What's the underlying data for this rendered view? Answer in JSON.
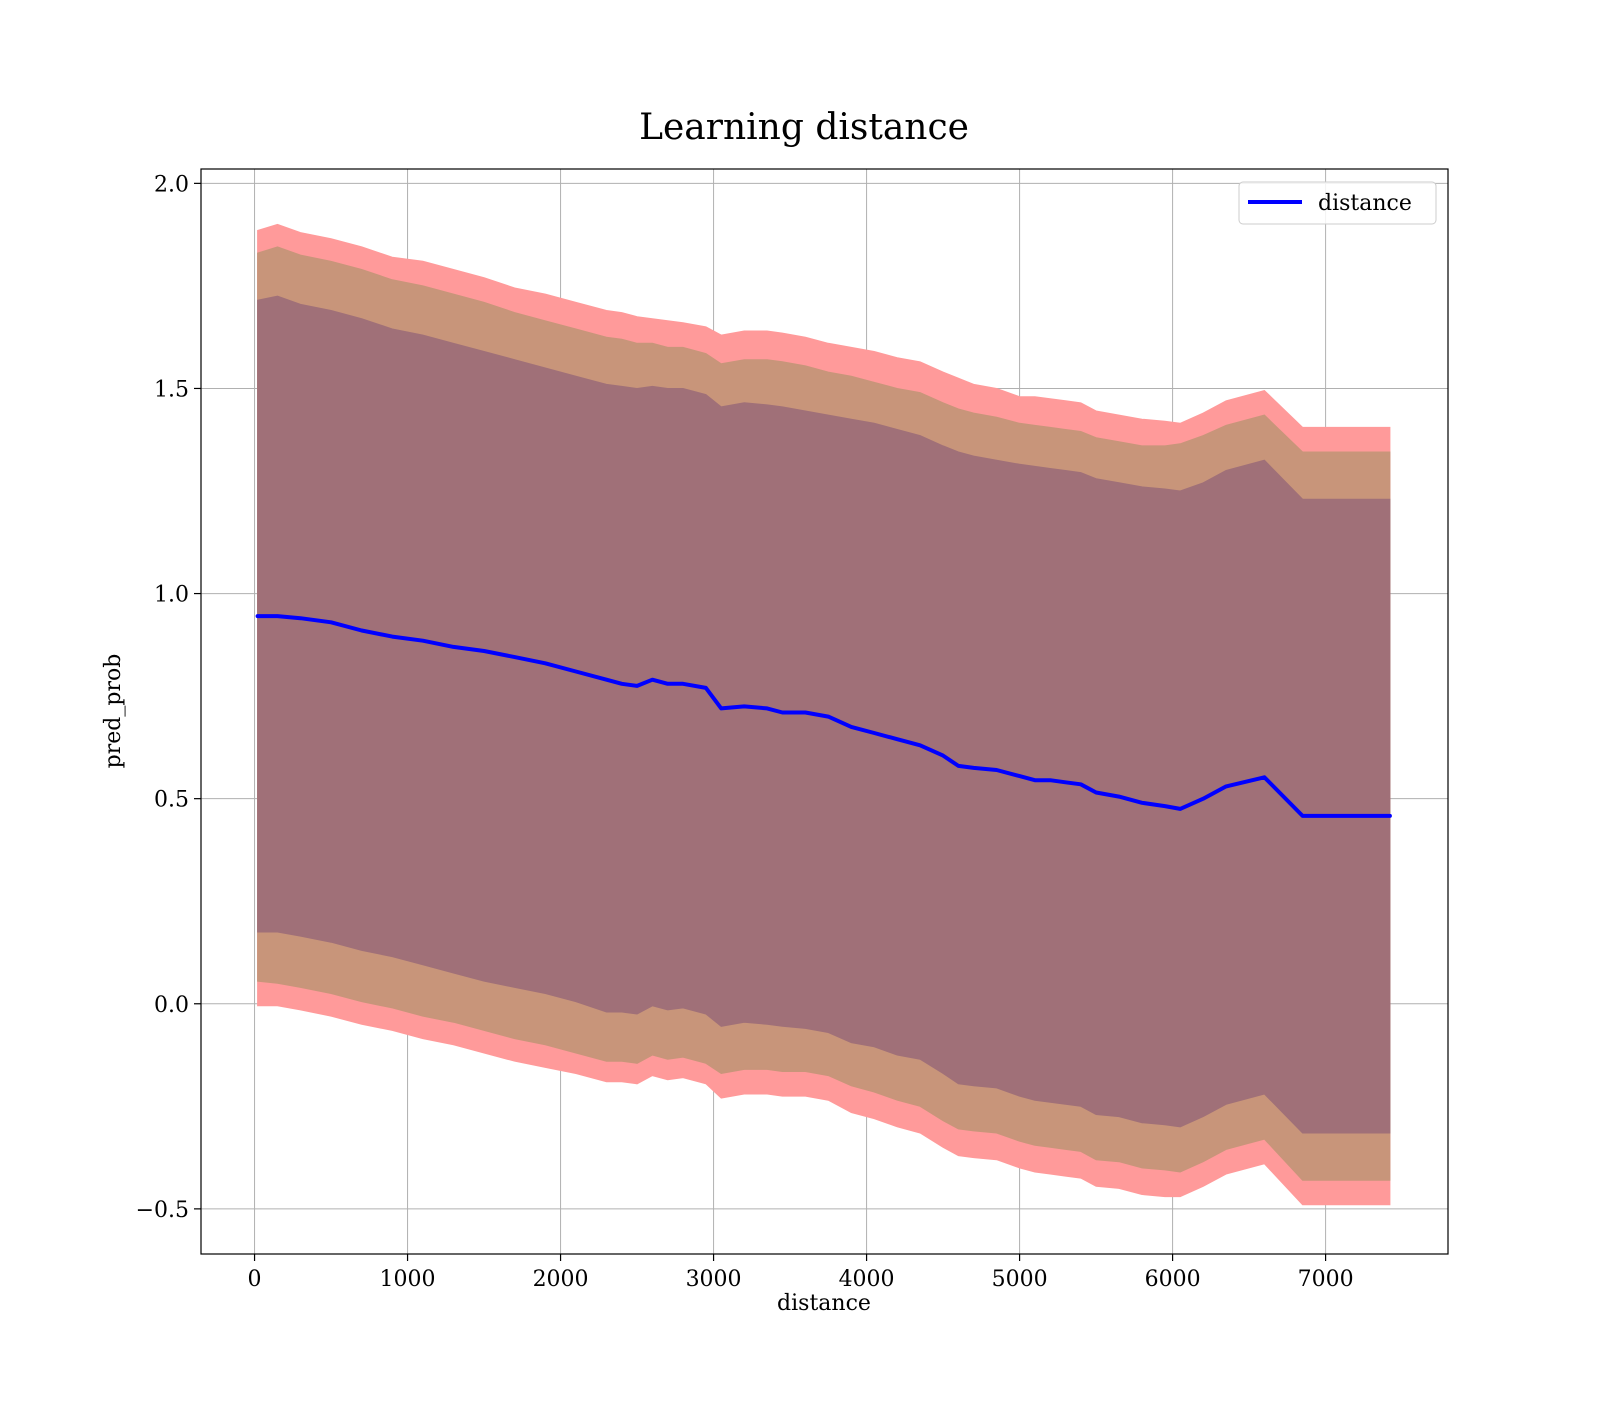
{
  "chart_data": {
    "type": "line",
    "title": "Learning distance",
    "xlabel": "distance",
    "ylabel": "pred_prob",
    "xlim": [
      -350,
      7800
    ],
    "ylim": [
      -0.61,
      2.035
    ],
    "xticks": [
      0,
      1000,
      2000,
      3000,
      4000,
      5000,
      6000,
      7000
    ],
    "xtick_labels": [
      "0",
      "1000",
      "2000",
      "3000",
      "4000",
      "5000",
      "6000",
      "7000"
    ],
    "yticks": [
      -0.5,
      0.0,
      0.5,
      1.0,
      1.5,
      2.0
    ],
    "ytick_labels": [
      "−0.5",
      "0.0",
      "0.5",
      "1.0",
      "1.5",
      "2.0"
    ],
    "grid": true,
    "legend": {
      "position": "top-right",
      "entries": [
        "distance"
      ]
    },
    "colors": {
      "line": "#0000ff",
      "band_outer": "#ff9a9a",
      "band_middle": "#c8957a",
      "band_inner": "#a07078",
      "grid": "#b0b0b0"
    },
    "series": [
      {
        "name": "distance",
        "x": [
          20,
          150,
          300,
          500,
          700,
          900,
          1100,
          1300,
          1500,
          1700,
          1900,
          2100,
          2300,
          2400,
          2500,
          2600,
          2700,
          2800,
          2950,
          3050,
          3200,
          3350,
          3450,
          3600,
          3750,
          3900,
          4050,
          4200,
          4350,
          4500,
          4600,
          4700,
          4850,
          5000,
          5100,
          5200,
          5300,
          5400,
          5500,
          5650,
          5800,
          5950,
          6050,
          6200,
          6350,
          6600,
          6850,
          7000,
          7200,
          7420
        ],
        "y": [
          0.945,
          0.945,
          0.94,
          0.93,
          0.91,
          0.895,
          0.885,
          0.87,
          0.86,
          0.845,
          0.83,
          0.81,
          0.79,
          0.78,
          0.775,
          0.79,
          0.78,
          0.78,
          0.77,
          0.72,
          0.725,
          0.72,
          0.71,
          0.71,
          0.7,
          0.675,
          0.66,
          0.645,
          0.63,
          0.605,
          0.58,
          0.575,
          0.57,
          0.555,
          0.545,
          0.545,
          0.54,
          0.535,
          0.515,
          0.505,
          0.49,
          0.482,
          0.475,
          0.5,
          0.53,
          0.552,
          0.458,
          0.458,
          0.458,
          0.458
        ]
      }
    ],
    "bands": [
      {
        "level": "outer",
        "upper": [
          1.885,
          1.9,
          1.88,
          1.865,
          1.845,
          1.82,
          1.81,
          1.79,
          1.77,
          1.745,
          1.73,
          1.71,
          1.69,
          1.685,
          1.675,
          1.67,
          1.665,
          1.66,
          1.65,
          1.63,
          1.64,
          1.64,
          1.635,
          1.625,
          1.61,
          1.6,
          1.59,
          1.575,
          1.565,
          1.54,
          1.525,
          1.51,
          1.5,
          1.48,
          1.48,
          1.475,
          1.47,
          1.465,
          1.445,
          1.435,
          1.425,
          1.42,
          1.415,
          1.44,
          1.47,
          1.495,
          1.405,
          1.405,
          1.405,
          1.405
        ],
        "lower": [
          -0.005,
          -0.005,
          -0.015,
          -0.03,
          -0.05,
          -0.065,
          -0.085,
          -0.1,
          -0.12,
          -0.14,
          -0.155,
          -0.17,
          -0.19,
          -0.19,
          -0.195,
          -0.175,
          -0.185,
          -0.18,
          -0.195,
          -0.23,
          -0.22,
          -0.22,
          -0.225,
          -0.225,
          -0.235,
          -0.265,
          -0.28,
          -0.3,
          -0.315,
          -0.35,
          -0.37,
          -0.375,
          -0.38,
          -0.4,
          -0.41,
          -0.415,
          -0.42,
          -0.425,
          -0.445,
          -0.45,
          -0.465,
          -0.47,
          -0.47,
          -0.445,
          -0.415,
          -0.39,
          -0.49,
          -0.49,
          -0.49,
          -0.49
        ]
      },
      {
        "level": "middle",
        "upper": [
          1.83,
          1.845,
          1.825,
          1.81,
          1.79,
          1.765,
          1.75,
          1.73,
          1.71,
          1.685,
          1.665,
          1.645,
          1.625,
          1.62,
          1.61,
          1.61,
          1.6,
          1.6,
          1.585,
          1.56,
          1.57,
          1.57,
          1.565,
          1.555,
          1.54,
          1.53,
          1.515,
          1.5,
          1.49,
          1.465,
          1.45,
          1.44,
          1.43,
          1.415,
          1.41,
          1.405,
          1.4,
          1.395,
          1.38,
          1.37,
          1.36,
          1.36,
          1.365,
          1.385,
          1.41,
          1.435,
          1.345,
          1.345,
          1.345,
          1.345
        ],
        "lower": [
          0.055,
          0.05,
          0.04,
          0.025,
          0.005,
          -0.01,
          -0.03,
          -0.045,
          -0.065,
          -0.085,
          -0.1,
          -0.12,
          -0.14,
          -0.14,
          -0.145,
          -0.125,
          -0.135,
          -0.13,
          -0.145,
          -0.17,
          -0.16,
          -0.16,
          -0.165,
          -0.165,
          -0.175,
          -0.2,
          -0.215,
          -0.235,
          -0.25,
          -0.285,
          -0.305,
          -0.31,
          -0.315,
          -0.335,
          -0.345,
          -0.35,
          -0.355,
          -0.36,
          -0.38,
          -0.385,
          -0.4,
          -0.405,
          -0.41,
          -0.385,
          -0.355,
          -0.33,
          -0.43,
          -0.43,
          -0.43,
          -0.43
        ]
      },
      {
        "level": "inner",
        "upper": [
          1.715,
          1.725,
          1.705,
          1.69,
          1.67,
          1.645,
          1.63,
          1.61,
          1.59,
          1.57,
          1.55,
          1.53,
          1.51,
          1.505,
          1.5,
          1.505,
          1.5,
          1.5,
          1.485,
          1.455,
          1.465,
          1.46,
          1.455,
          1.445,
          1.435,
          1.425,
          1.415,
          1.4,
          1.385,
          1.36,
          1.345,
          1.335,
          1.325,
          1.315,
          1.31,
          1.305,
          1.3,
          1.295,
          1.28,
          1.27,
          1.26,
          1.255,
          1.25,
          1.27,
          1.3,
          1.325,
          1.23,
          1.23,
          1.23,
          1.23
        ],
        "lower": [
          0.175,
          0.175,
          0.165,
          0.15,
          0.13,
          0.115,
          0.095,
          0.075,
          0.055,
          0.04,
          0.025,
          0.005,
          -0.02,
          -0.02,
          -0.025,
          -0.005,
          -0.015,
          -0.01,
          -0.025,
          -0.055,
          -0.045,
          -0.05,
          -0.055,
          -0.06,
          -0.07,
          -0.095,
          -0.105,
          -0.125,
          -0.135,
          -0.17,
          -0.195,
          -0.2,
          -0.205,
          -0.225,
          -0.235,
          -0.24,
          -0.245,
          -0.25,
          -0.27,
          -0.275,
          -0.29,
          -0.295,
          -0.3,
          -0.275,
          -0.245,
          -0.22,
          -0.315,
          -0.315,
          -0.315,
          -0.315
        ]
      }
    ]
  }
}
